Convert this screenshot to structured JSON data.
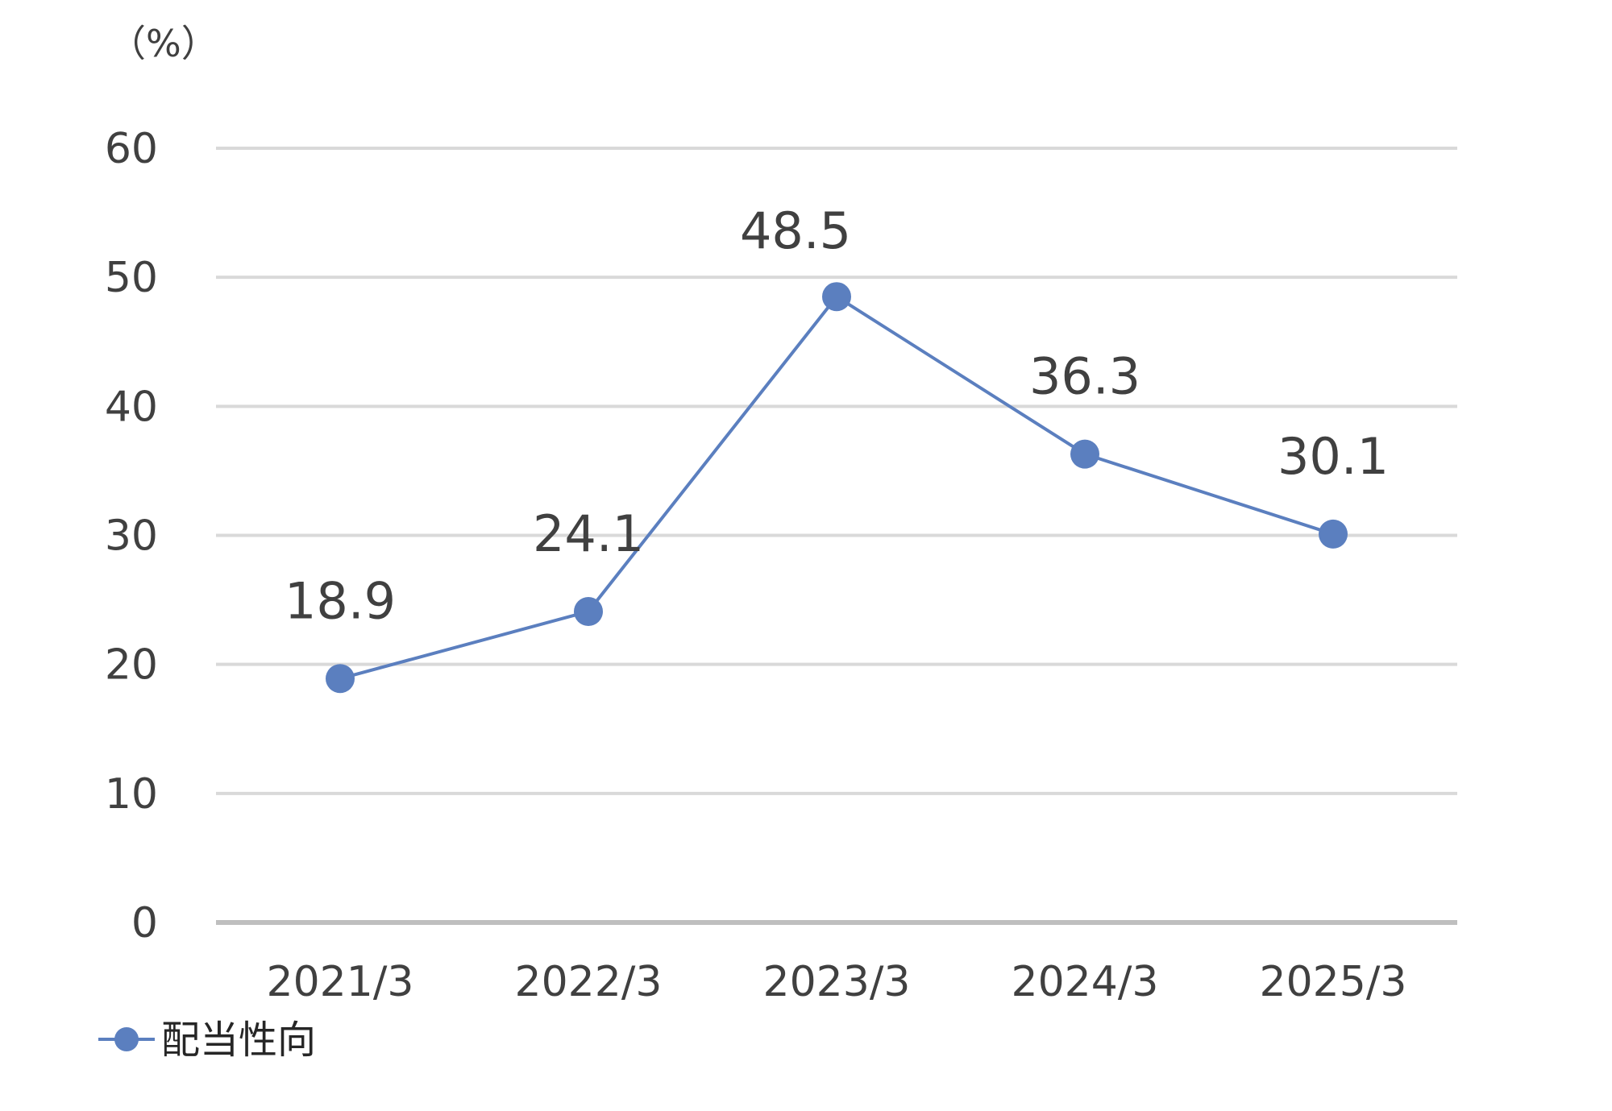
{
  "chart_data": {
    "type": "line",
    "unit_label": "（%）",
    "categories": [
      "2021/3",
      "2022/3",
      "2023/3",
      "2024/3",
      "2025/3"
    ],
    "series": [
      {
        "name": "配当性向",
        "values": [
          18.9,
          24.1,
          48.5,
          36.3,
          30.1
        ]
      }
    ],
    "data_labels": [
      "18.9",
      "24.1",
      "48.5",
      "36.3",
      "30.1"
    ],
    "y_ticks": [
      "0",
      "10",
      "20",
      "30",
      "40",
      "50",
      "60"
    ],
    "ylim": [
      0,
      60
    ],
    "grid": true,
    "legend_position": "bottom-left",
    "colors": {
      "series": "#5B7FBF",
      "grid": "#D9D9D9",
      "axis": "#BFBFBF",
      "text": "#404040"
    }
  }
}
